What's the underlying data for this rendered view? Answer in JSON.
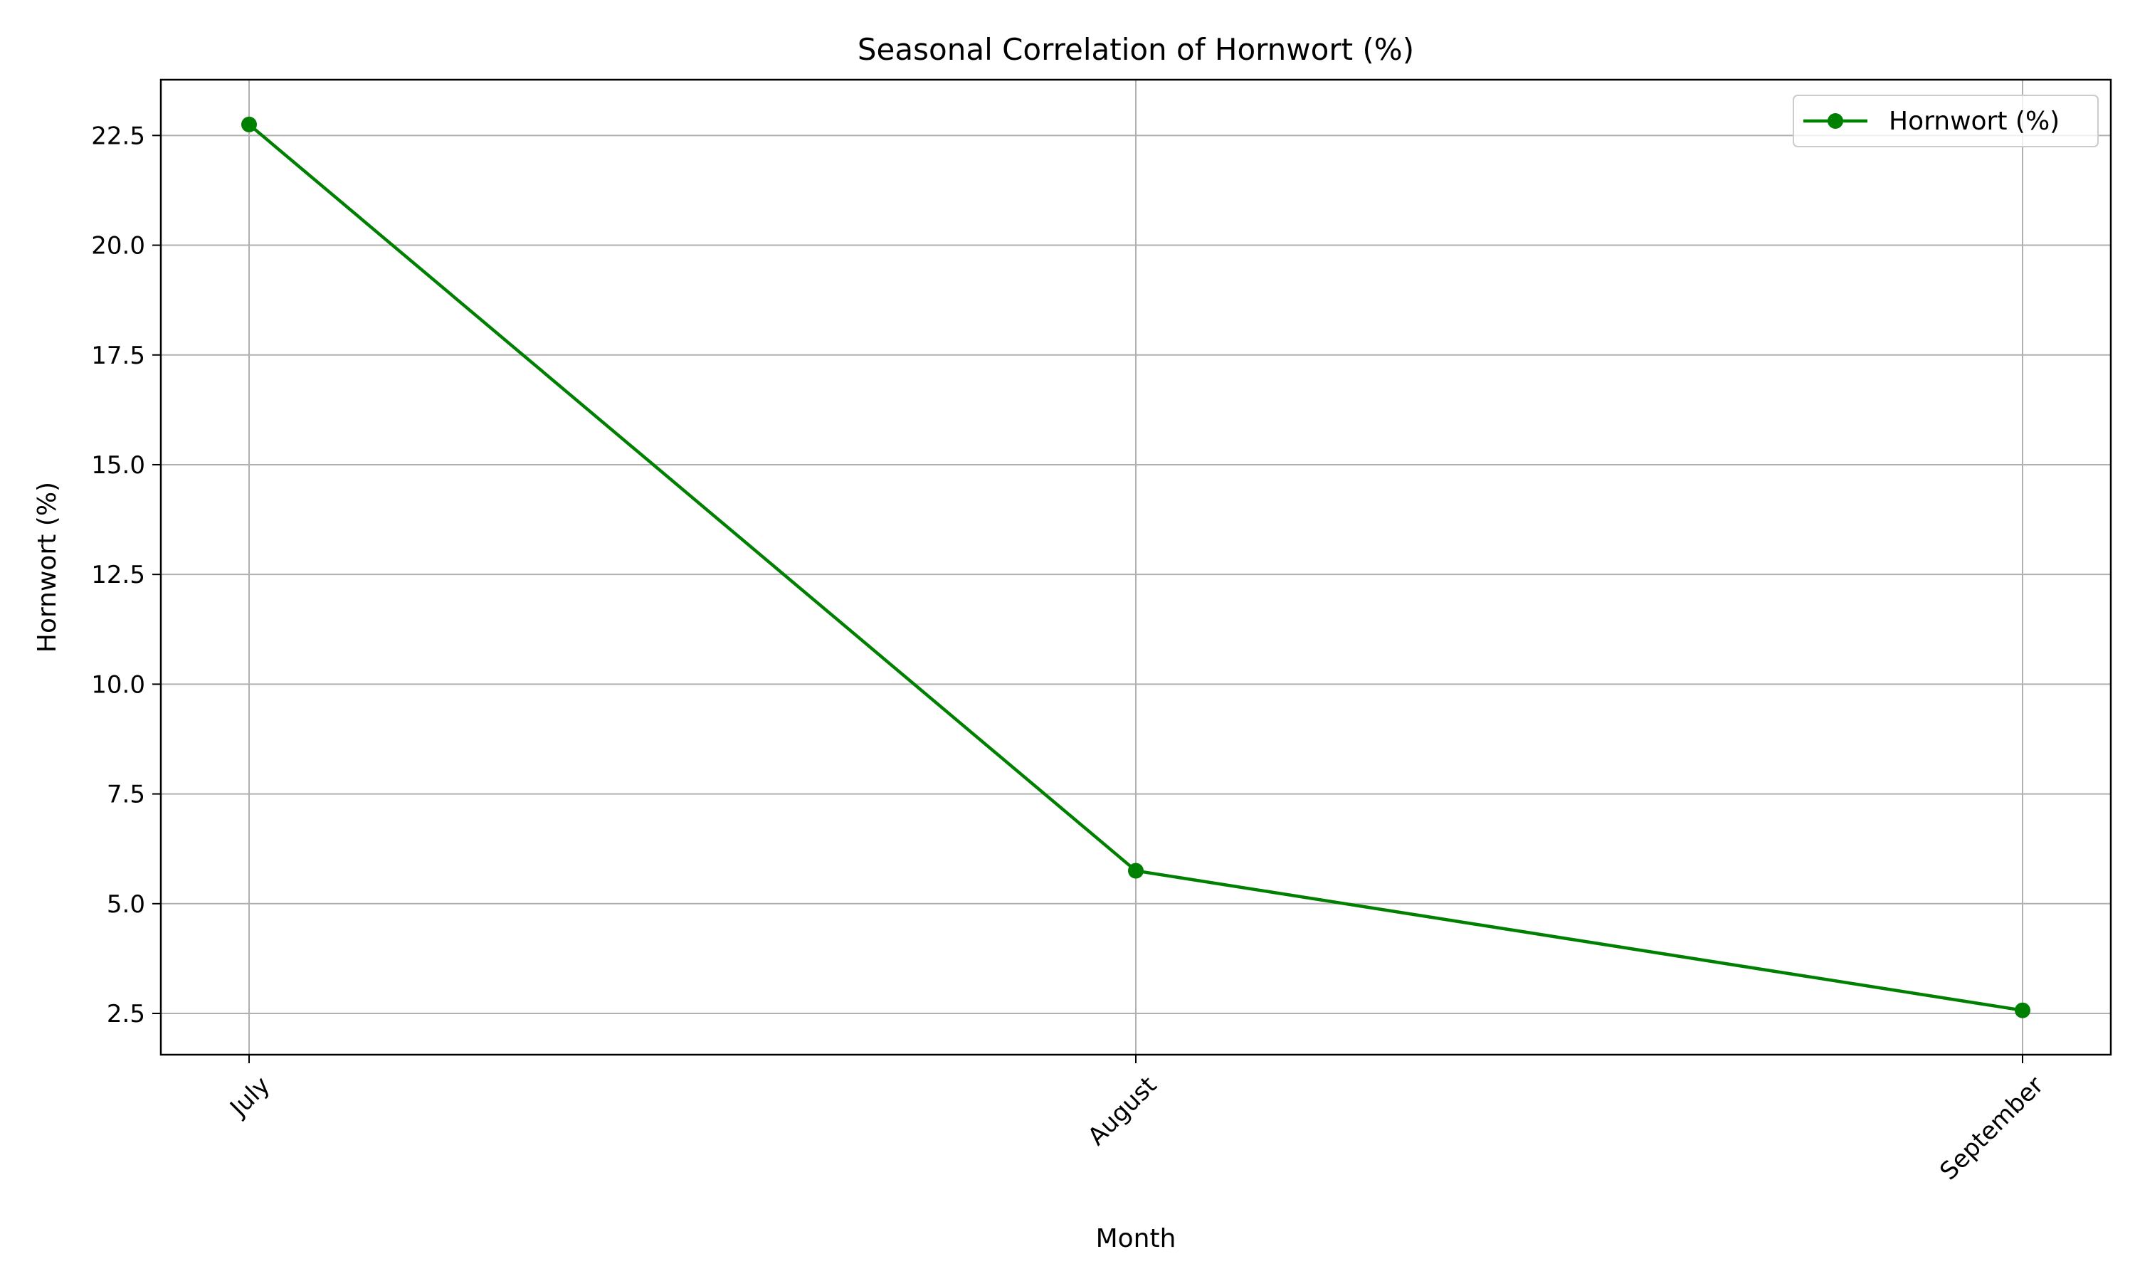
{
  "chart_data": {
    "type": "line",
    "title": "Seasonal Correlation of Hornwort (%)",
    "xlabel": "Month",
    "ylabel": "Hornwort (%)",
    "categories": [
      "July",
      "August",
      "September"
    ],
    "series": [
      {
        "name": "Hornwort (%)",
        "values": [
          22.75,
          5.75,
          2.57
        ],
        "color": "#008000"
      }
    ],
    "ylim": [
      1.56,
      23.77
    ],
    "yticks": [
      2.5,
      5.0,
      7.5,
      10.0,
      12.5,
      15.0,
      17.5,
      20.0,
      22.5
    ],
    "ytick_labels": [
      "2.5",
      "5.0",
      "7.5",
      "10.0",
      "12.5",
      "15.0",
      "17.5",
      "20.0",
      "22.5"
    ],
    "grid": true,
    "legend_position": "top-right",
    "marker": "circle",
    "xtick_rotation": -45
  }
}
